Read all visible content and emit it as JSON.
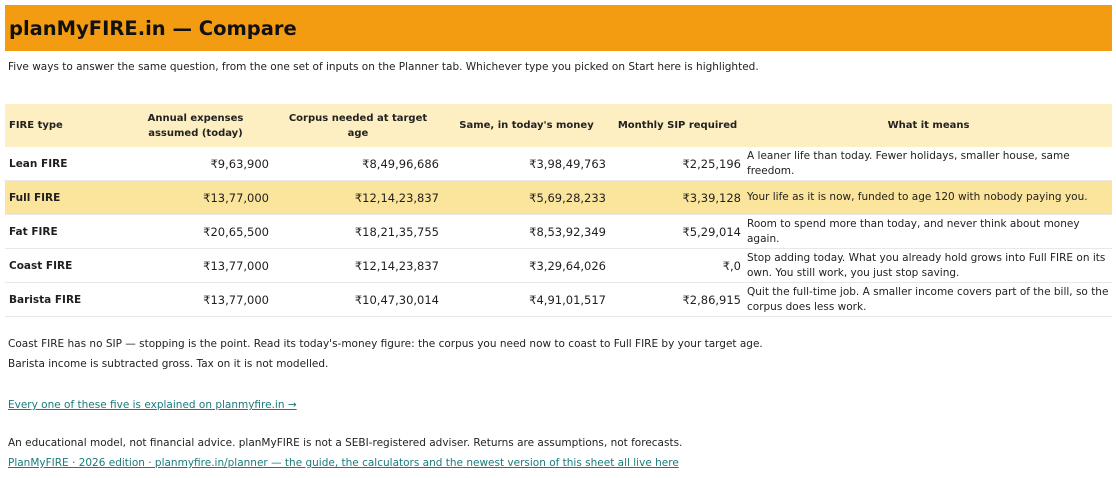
{
  "title": "planMyFIRE.in  —  Compare",
  "subtitle": "Five ways to answer the same question, from the one set of inputs on the Planner tab. Whichever type you picked on Start here is highlighted.",
  "table": {
    "headers": {
      "type": "FIRE type",
      "expenses": "Annual expenses assumed (today)",
      "corpus": "Corpus needed at target age",
      "todays_money": "Same, in today's money",
      "sip": "Monthly SIP required",
      "meaning": "What it means"
    },
    "rows": [
      {
        "name": "Lean FIRE",
        "expenses": "₹9,63,900",
        "corpus": "₹8,49,96,686",
        "todays_money": "₹3,98,49,763",
        "sip": "₹2,25,196",
        "meaning": "A leaner life than today. Fewer holidays, smaller house, same freedom.",
        "highlighted": false
      },
      {
        "name": "Full FIRE",
        "expenses": "₹13,77,000",
        "corpus": "₹12,14,23,837",
        "todays_money": "₹5,69,28,233",
        "sip": "₹3,39,128",
        "meaning": "Your life as it is now, funded to age 120 with nobody paying you.",
        "highlighted": true
      },
      {
        "name": "Fat FIRE",
        "expenses": "₹20,65,500",
        "corpus": "₹18,21,35,755",
        "todays_money": "₹8,53,92,349",
        "sip": "₹5,29,014",
        "meaning": "Room to spend more than today, and never think about money again.",
        "highlighted": false
      },
      {
        "name": "Coast FIRE",
        "expenses": "₹13,77,000",
        "corpus": "₹12,14,23,837",
        "todays_money": "₹3,29,64,026",
        "sip": "₹,0",
        "meaning": "Stop adding today. What you already hold grows into Full FIRE on its own. You still work, you just stop saving.",
        "highlighted": false
      },
      {
        "name": "Barista FIRE",
        "expenses": "₹13,77,000",
        "corpus": "₹10,47,30,014",
        "todays_money": "₹4,91,01,517",
        "sip": "₹2,86,915",
        "meaning": "Quit the full-time job. A smaller income covers part of the bill, so the corpus does less work.",
        "highlighted": false
      }
    ]
  },
  "notes": {
    "coast": "Coast FIRE has no SIP — stopping is the point. Read its today's-money figure: the corpus you need now to coast to Full FIRE by your target age.",
    "barista": "Barista income is subtracted gross. Tax on it is not modelled.",
    "explained_link": "Every one of these five is explained on planmyfire.in →",
    "disclaimer": "An educational model, not financial advice. planMyFIRE is not a SEBI-registered adviser. Returns are assumptions, not forecasts.",
    "footer_link": "PlanMyFIRE  ·  2026 edition  ·  planmyfire.in/planner  —  the guide, the calculators and the newest version of this sheet all live here"
  }
}
